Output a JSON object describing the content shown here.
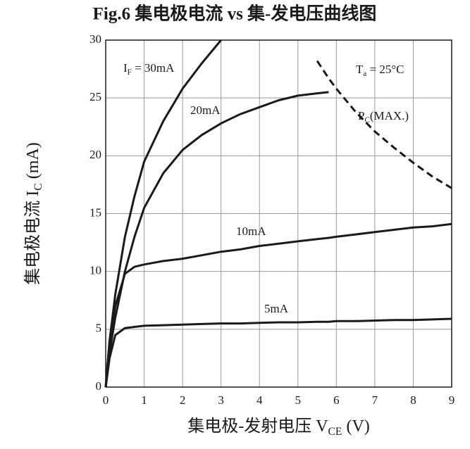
{
  "chart_data": {
    "type": "line",
    "title": "Fig.6 集电极电流 vs 集-发电压曲线图",
    "xlabel": [
      "集电极-发射电压 V",
      "CE",
      " (V)"
    ],
    "ylabel": [
      "集电极电流 I",
      "C",
      " (mA)"
    ],
    "annotations": [
      [
        "T",
        "a",
        " = 25°C"
      ]
    ],
    "x": [
      0,
      0.1,
      0.25,
      0.5,
      0.75,
      1,
      1.5,
      2,
      2.5,
      3,
      3.5,
      4,
      4.5,
      5,
      5.5,
      5.8,
      6,
      6.5,
      7,
      7.5,
      8,
      8.5,
      9
    ],
    "series": [
      {
        "name": [
          "I",
          "F",
          " = 30mA"
        ],
        "color": "#1a1a1a",
        "dashed": false,
        "values": [
          0,
          4,
          8,
          13,
          16.5,
          19.5,
          23,
          25.8,
          28,
          30,
          null,
          null,
          null,
          null,
          null,
          null,
          null,
          null,
          null,
          null,
          null,
          null,
          null
        ]
      },
      {
        "name": [
          "20mA"
        ],
        "color": "#1a1a1a",
        "dashed": false,
        "values": [
          0,
          3,
          6,
          10,
          13,
          15.5,
          18.5,
          20.5,
          21.8,
          22.8,
          23.6,
          24.2,
          24.8,
          25.2,
          25.4,
          25.5,
          null,
          null,
          null,
          null,
          null,
          null,
          null
        ]
      },
      {
        "name": [
          "10mA"
        ],
        "color": "#1a1a1a",
        "dashed": false,
        "values": [
          0,
          4,
          7,
          9.8,
          10.4,
          10.6,
          10.9,
          11.1,
          11.4,
          11.7,
          11.9,
          12.2,
          12.4,
          12.6,
          12.8,
          12.9,
          13,
          13.2,
          13.4,
          13.6,
          13.8,
          13.9,
          14.1
        ]
      },
      {
        "name": [
          "5mA"
        ],
        "color": "#1a1a1a",
        "dashed": false,
        "values": [
          0,
          2.5,
          4.5,
          5.1,
          5.2,
          5.3,
          5.35,
          5.4,
          5.45,
          5.5,
          5.5,
          5.55,
          5.6,
          5.6,
          5.65,
          5.65,
          5.7,
          5.7,
          5.75,
          5.8,
          5.8,
          5.85,
          5.9
        ]
      },
      {
        "name": [
          "P",
          "C",
          "(MAX.)"
        ],
        "color": "#1a1a1a",
        "dashed": true,
        "values": [
          null,
          null,
          null,
          null,
          null,
          null,
          null,
          null,
          null,
          null,
          null,
          null,
          null,
          null,
          28.2,
          26.7,
          25.8,
          23.8,
          22.1,
          20.7,
          19.4,
          18.2,
          17.2
        ]
      }
    ],
    "xlim": [
      0,
      9
    ],
    "xticks": [
      0,
      1,
      2,
      3,
      4,
      5,
      6,
      7,
      8,
      9
    ],
    "ylim": [
      0,
      30
    ],
    "yticks": [
      0,
      5,
      10,
      15,
      20,
      25,
      30
    ],
    "grid": true
  }
}
